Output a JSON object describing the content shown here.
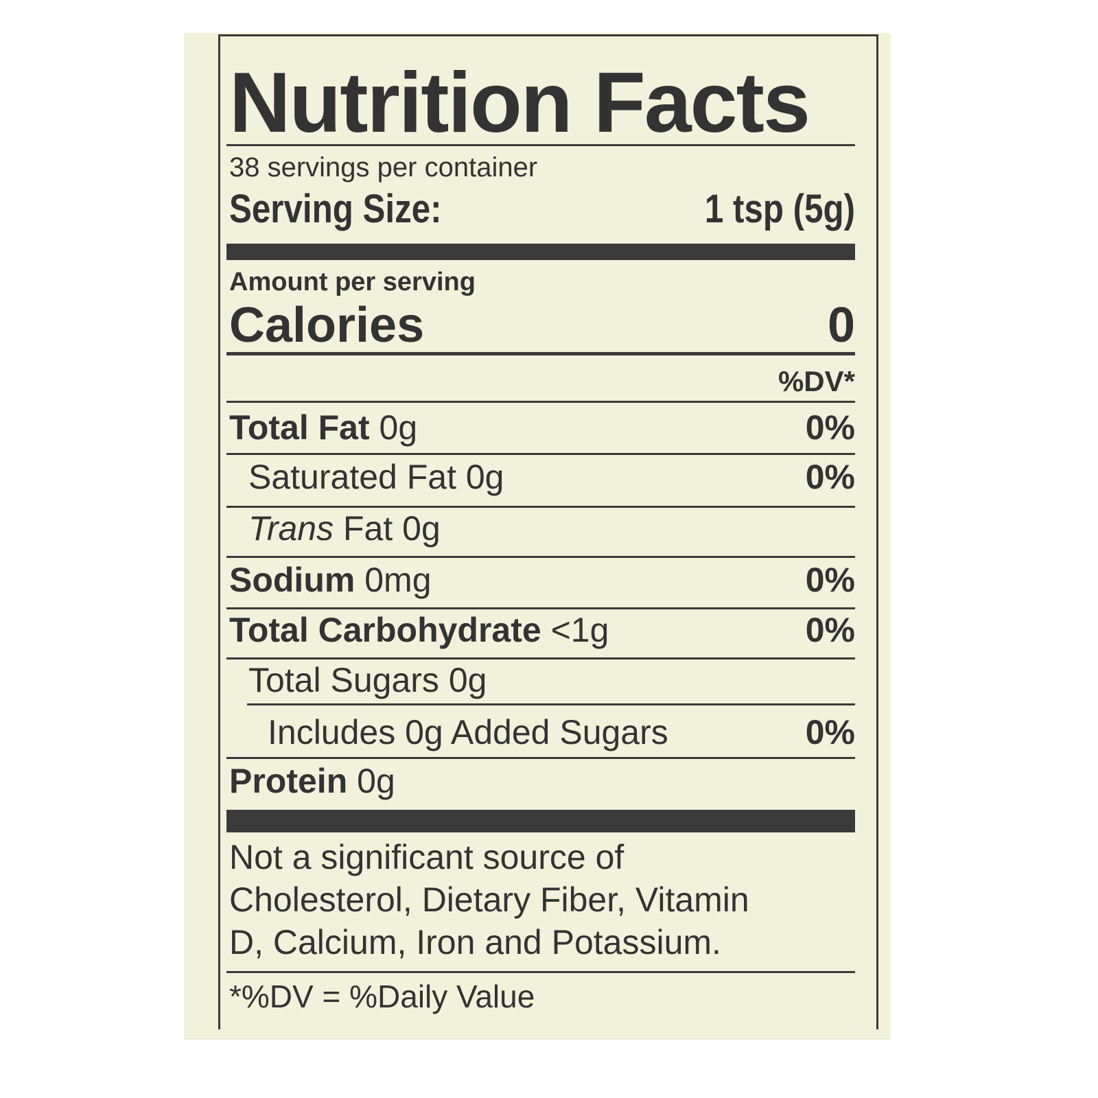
{
  "title": "Nutrition Facts",
  "servings_per_container": "38 servings per container",
  "serving_size": {
    "label": "Serving Size:",
    "value": "1 tsp (5g)"
  },
  "amount_per_serving": "Amount per serving",
  "calories": {
    "label": "Calories",
    "value": "0"
  },
  "dv_header": "%DV*",
  "nutrients": [
    {
      "name": "Total Fat",
      "amount": "0g",
      "dv": "0%"
    },
    {
      "name": "Saturated Fat",
      "amount": "0g",
      "dv": "0%"
    },
    {
      "name": "Trans",
      "name_rest": "Fat",
      "amount": "0g",
      "dv": ""
    },
    {
      "name": "Sodium",
      "amount": "0mg",
      "dv": "0%"
    },
    {
      "name": "Total Carbohydrate",
      "amount": "<1g",
      "dv": "0%"
    },
    {
      "name": "Total Sugars",
      "amount": "0g",
      "dv": ""
    },
    {
      "name": "Includes 0g Added Sugars",
      "amount": "",
      "dv": "0%"
    },
    {
      "name": "Protein",
      "amount": "0g",
      "dv": ""
    }
  ],
  "footnote_lines": [
    "Not a significant source of",
    "Cholesterol, Dietary Fiber, Vitamin",
    "D, Calcium, Iron and Potassium."
  ],
  "dv_note": "*%DV = %Daily Value",
  "colors": {
    "background": "#f2f2dc",
    "ink": "#333333"
  }
}
